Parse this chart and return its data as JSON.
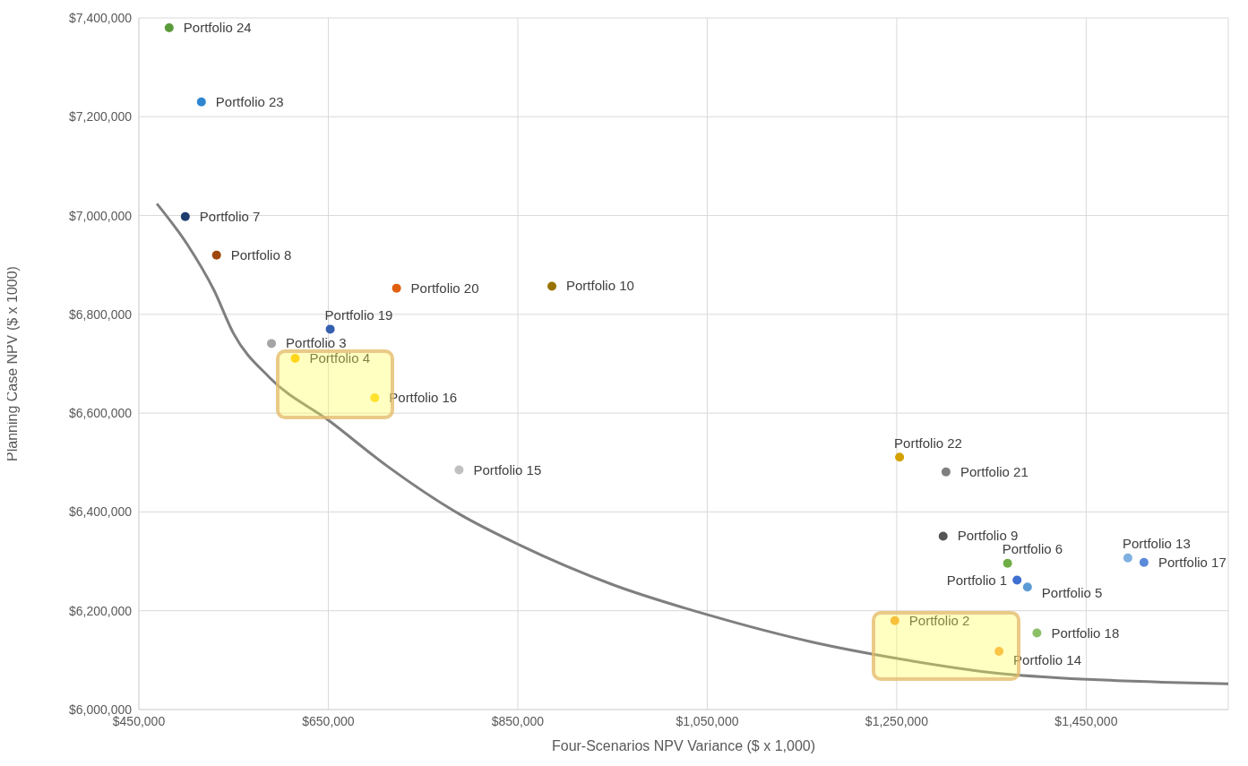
{
  "chart_data": {
    "type": "scatter",
    "xlabel": "Four-Scenarios  NPV Variance ($ x 1,000)",
    "ylabel": "Planning Case NPV ($ x 1000)",
    "xlim": [
      450000,
      1600000
    ],
    "xticks": [
      {
        "value": 450000,
        "label": "$450,000"
      },
      {
        "value": 650000,
        "label": "$650,000"
      },
      {
        "value": 850000,
        "label": "$850,000"
      },
      {
        "value": 1050000,
        "label": "$1,050,000"
      },
      {
        "value": 1250000,
        "label": "$1,250,000"
      },
      {
        "value": 1450000,
        "label": "$1,450,000"
      }
    ],
    "ylim": [
      6000000,
      7400000
    ],
    "yticks": [
      {
        "value": 6000000,
        "label": "$6,000,000"
      },
      {
        "value": 6200000,
        "label": "$6,200,000"
      },
      {
        "value": 6400000,
        "label": "$6,400,000"
      },
      {
        "value": 6600000,
        "label": "$6,600,000"
      },
      {
        "value": 6800000,
        "label": "$6,800,000"
      },
      {
        "value": 7000000,
        "label": "$7,000,000"
      },
      {
        "value": 7200000,
        "label": "$7,200,000"
      },
      {
        "value": 7400000,
        "label": "$7,400,000"
      }
    ],
    "grid": true,
    "legend": false,
    "marker": "circle",
    "series": [
      {
        "name": "Portfolio 1",
        "color": "#3f6fd0",
        "x": [
          1377000
        ],
        "values": [
          6262000
        ]
      },
      {
        "name": "Portfolio 2",
        "color": "#f4a030",
        "x": [
          1248000
        ],
        "values": [
          6180000
        ]
      },
      {
        "name": "Portfolio 3",
        "color": "#a5a5a5",
        "x": [
          590000
        ],
        "values": [
          6741000
        ]
      },
      {
        "name": "Portfolio 4",
        "color": "#ffc000",
        "x": [
          615000
        ],
        "values": [
          6711000
        ]
      },
      {
        "name": "Portfolio 5",
        "color": "#5b9bd5",
        "x": [
          1388000
        ],
        "values": [
          6248000
        ]
      },
      {
        "name": "Portfolio 6",
        "color": "#70ad47",
        "x": [
          1367000
        ],
        "values": [
          6296000
        ]
      },
      {
        "name": "Portfolio 7",
        "color": "#1f3d6e",
        "x": [
          499000
        ],
        "values": [
          6998000
        ]
      },
      {
        "name": "Portfolio 8",
        "color": "#9e480e",
        "x": [
          532000
        ],
        "values": [
          6920000
        ]
      },
      {
        "name": "Portfolio 9",
        "color": "#555555",
        "x": [
          1299000
        ],
        "values": [
          6351000
        ]
      },
      {
        "name": "Portfolio 10",
        "color": "#997300",
        "x": [
          886000
        ],
        "values": [
          6857000
        ]
      },
      {
        "name": "Portfolio 13",
        "color": "#7fb0e0",
        "x": [
          1494000
        ],
        "values": [
          6307000
        ]
      },
      {
        "name": "Portfolio 14",
        "color": "#f7a540",
        "x": [
          1358000
        ],
        "values": [
          6118000
        ]
      },
      {
        "name": "Portfolio 15",
        "color": "#c0c0c0",
        "x": [
          788000
        ],
        "values": [
          6485000
        ]
      },
      {
        "name": "Portfolio 16",
        "color": "#ffd21f",
        "x": [
          699000
        ],
        "values": [
          6631000
        ]
      },
      {
        "name": "Portfolio 17",
        "color": "#5b8ad8",
        "x": [
          1511000
        ],
        "values": [
          6298000
        ]
      },
      {
        "name": "Portfolio 18",
        "color": "#8cc068",
        "x": [
          1398000
        ],
        "values": [
          6155000
        ]
      },
      {
        "name": "Portfolio 19",
        "color": "#3560b0",
        "x": [
          652000
        ],
        "values": [
          6770000
        ]
      },
      {
        "name": "Portfolio 20",
        "color": "#e06010",
        "x": [
          722000
        ],
        "values": [
          6853000
        ]
      },
      {
        "name": "Portfolio 21",
        "color": "#7f7f7f",
        "x": [
          1302000
        ],
        "values": [
          6481000
        ]
      },
      {
        "name": "Portfolio 22",
        "color": "#d4a000",
        "x": [
          1253000
        ],
        "values": [
          6511000
        ]
      },
      {
        "name": "Portfolio 23",
        "color": "#2e86d0",
        "x": [
          516000
        ],
        "values": [
          7230000
        ]
      },
      {
        "name": "Portfolio 24",
        "color": "#5b9a3a",
        "x": [
          482000
        ],
        "values": [
          7380000
        ]
      },
      {
        "type": "line",
        "marker": "none",
        "color": "#7f7f7f",
        "x": [
          469000,
          502000,
          529000,
          550000,
          588000,
          652000,
          712000,
          788000,
          852000,
          950000,
          1052000,
          1160000,
          1255000,
          1350000,
          1452000,
          1540000,
          1600000
        ],
        "values": [
          7024000,
          6939000,
          6850000,
          6761000,
          6672000,
          6583000,
          6493000,
          6396000,
          6333000,
          6253000,
          6191000,
          6137000,
          6102000,
          6075000,
          6061000,
          6055000,
          6052000
        ]
      }
    ]
  }
}
